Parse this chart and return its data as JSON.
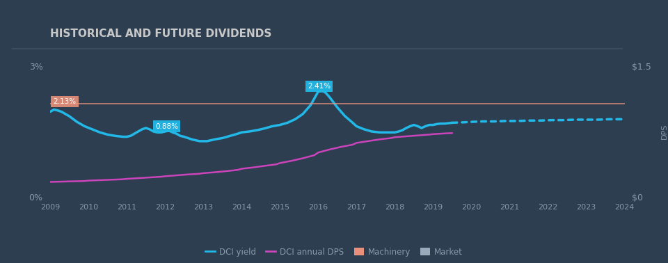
{
  "title": "HISTORICAL AND FUTURE DIVIDENDS",
  "bg_color": "#2d3e50",
  "plot_bg_color": "#2d3e50",
  "title_color": "#c8c8c8",
  "text_color": "#8899aa",
  "grid_color": "#4a5a6a",
  "xlim": [
    2009,
    2024
  ],
  "ylim_left": [
    0,
    0.03
  ],
  "ylim_right": [
    0,
    1.5
  ],
  "machinery_yield": 0.0213,
  "machinery_label": "2.13%",
  "machinery_color": "#e8907a",
  "peak_label": "2.41%",
  "trough_label": "0.88%",
  "dci_yield_color": "#22b8e8",
  "dci_dps_color": "#cc44bb",
  "market_color": "#9aaabb",
  "legend_items": [
    "DCI yield",
    "DCI annual DPS",
    "Machinery",
    "Market"
  ],
  "legend_colors": [
    "#22b8e8",
    "#cc44bb",
    "#e8907a",
    "#9aaabb"
  ],
  "dci_yield_x": [
    2009.0,
    2009.1,
    2009.2,
    2009.3,
    2009.5,
    2009.7,
    2009.9,
    2010.1,
    2010.3,
    2010.5,
    2010.7,
    2010.9,
    2011.0,
    2011.1,
    2011.2,
    2011.3,
    2011.4,
    2011.5,
    2011.6,
    2011.7,
    2011.8,
    2011.9,
    2012.0,
    2012.1,
    2012.2,
    2012.3,
    2012.4,
    2012.5,
    2012.6,
    2012.7,
    2012.8,
    2012.9,
    2013.0,
    2013.1,
    2013.2,
    2013.3,
    2013.5,
    2013.7,
    2013.9,
    2014.0,
    2014.2,
    2014.4,
    2014.6,
    2014.8,
    2015.0,
    2015.2,
    2015.4,
    2015.6,
    2015.8,
    2016.0,
    2016.1,
    2016.15,
    2016.2,
    2016.3,
    2016.5,
    2016.7,
    2016.9,
    2017.0,
    2017.2,
    2017.4,
    2017.6,
    2017.8,
    2018.0,
    2018.1,
    2018.2,
    2018.3,
    2018.4,
    2018.5,
    2018.6,
    2018.7,
    2018.8,
    2018.9,
    2019.0,
    2019.1,
    2019.2,
    2019.3,
    2019.4,
    2019.5
  ],
  "dci_yield_y": [
    0.0195,
    0.02,
    0.0198,
    0.0195,
    0.0185,
    0.0172,
    0.0162,
    0.0155,
    0.0148,
    0.0143,
    0.014,
    0.0138,
    0.0138,
    0.014,
    0.0145,
    0.015,
    0.0155,
    0.0158,
    0.0155,
    0.015,
    0.0148,
    0.0148,
    0.015,
    0.0152,
    0.0148,
    0.0145,
    0.014,
    0.0138,
    0.0135,
    0.0132,
    0.013,
    0.0128,
    0.0128,
    0.0128,
    0.013,
    0.0132,
    0.0135,
    0.014,
    0.0145,
    0.0148,
    0.015,
    0.0153,
    0.0157,
    0.0162,
    0.0165,
    0.017,
    0.0178,
    0.019,
    0.021,
    0.0241,
    0.0242,
    0.0241,
    0.0238,
    0.0228,
    0.0205,
    0.0185,
    0.017,
    0.0162,
    0.0155,
    0.015,
    0.0148,
    0.0148,
    0.0148,
    0.015,
    0.0153,
    0.0158,
    0.0162,
    0.0165,
    0.0162,
    0.0158,
    0.0162,
    0.0165,
    0.0165,
    0.0167,
    0.0168,
    0.0168,
    0.0169,
    0.017
  ],
  "dci_yield_dotted_x": [
    2019.5,
    2019.8,
    2020.0,
    2020.3,
    2020.6,
    2020.9,
    2021.2,
    2021.5,
    2021.8,
    2022.1,
    2022.4,
    2022.7,
    2023.0,
    2023.3,
    2023.6,
    2023.9,
    2024.0
  ],
  "dci_yield_dotted_y": [
    0.017,
    0.0171,
    0.0172,
    0.0173,
    0.0173,
    0.0174,
    0.0174,
    0.0175,
    0.0175,
    0.0176,
    0.0176,
    0.0177,
    0.0177,
    0.0177,
    0.0178,
    0.0178,
    0.0178
  ],
  "dci_dps_x": [
    2009.0,
    2009.3,
    2009.6,
    2009.9,
    2010.0,
    2010.3,
    2010.6,
    2010.9,
    2011.0,
    2011.3,
    2011.6,
    2011.9,
    2012.0,
    2012.3,
    2012.6,
    2012.9,
    2013.0,
    2013.3,
    2013.6,
    2013.9,
    2014.0,
    2014.3,
    2014.6,
    2014.9,
    2015.0,
    2015.3,
    2015.6,
    2015.9,
    2016.0,
    2016.3,
    2016.6,
    2016.9,
    2017.0,
    2017.3,
    2017.6,
    2017.9,
    2018.0,
    2018.3,
    2018.6,
    2018.9,
    2019.0,
    2019.3,
    2019.5
  ],
  "dci_dps_y": [
    0.175,
    0.178,
    0.182,
    0.185,
    0.19,
    0.195,
    0.2,
    0.205,
    0.21,
    0.218,
    0.226,
    0.234,
    0.24,
    0.25,
    0.26,
    0.268,
    0.275,
    0.285,
    0.298,
    0.312,
    0.325,
    0.34,
    0.358,
    0.375,
    0.39,
    0.415,
    0.445,
    0.48,
    0.51,
    0.545,
    0.575,
    0.6,
    0.62,
    0.64,
    0.66,
    0.675,
    0.685,
    0.695,
    0.705,
    0.715,
    0.72,
    0.728,
    0.732
  ]
}
